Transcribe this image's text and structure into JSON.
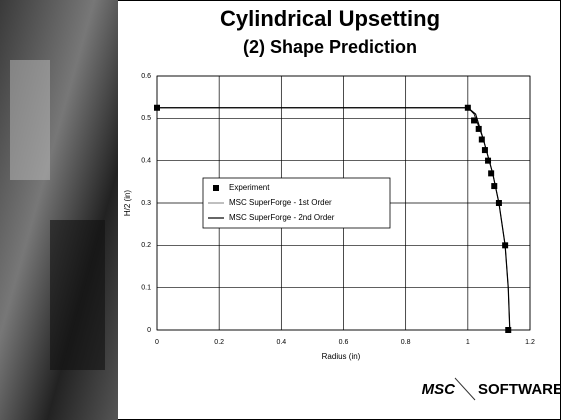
{
  "chart_data": {
    "type": "line",
    "title": "Cylindrical Upsetting",
    "subtitle": "(2) Shape Prediction",
    "x_label": "Radius (in)",
    "y_label": "H/2 (in)",
    "xlim": [
      0,
      1.2
    ],
    "xticks": [
      0,
      0.2,
      0.4,
      0.6,
      0.8,
      1,
      1.2
    ],
    "ylim": [
      0,
      0.6
    ],
    "yticks": [
      0,
      0.1,
      0.2,
      0.3,
      0.4,
      0.5,
      0.6
    ],
    "grid": true,
    "series": [
      {
        "name": "Experiment",
        "color": "#000000",
        "marker": "square",
        "x": [
          0,
          1.0,
          1.02,
          1.035,
          1.045,
          1.055,
          1.065,
          1.075,
          1.085,
          1.1,
          1.12,
          1.13
        ],
        "values": [
          0.525,
          0.525,
          0.495,
          0.475,
          0.45,
          0.425,
          0.4,
          0.37,
          0.34,
          0.3,
          0.2,
          0
        ]
      },
      {
        "name": "MSC SuperForge - 1st Order",
        "color": "#000000",
        "x": [
          0,
          1.0,
          1.02,
          1.05,
          1.08,
          1.1,
          1.12,
          1.13,
          1.135
        ],
        "values": [
          0.525,
          0.525,
          0.51,
          0.45,
          0.37,
          0.3,
          0.2,
          0.1,
          0
        ]
      },
      {
        "name": "MSC SuperForge - 2nd Order",
        "color": "#000000",
        "x": [
          0,
          1.0,
          1.025,
          1.05,
          1.08,
          1.1,
          1.12,
          1.13,
          1.135
        ],
        "values": [
          0.525,
          0.525,
          0.51,
          0.45,
          0.37,
          0.3,
          0.2,
          0.1,
          0
        ]
      }
    ]
  },
  "logo": {
    "left": "MSC",
    "right": "SOFTWARE"
  }
}
